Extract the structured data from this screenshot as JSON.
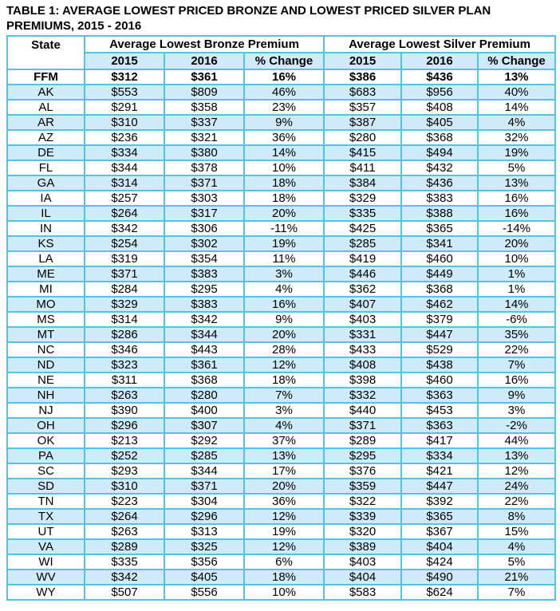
{
  "title": "TABLE 1: AVERAGE LOWEST PRICED BRONZE AND LOWEST PRICED SILVER PLAN PREMIUMS, 2015 - 2016",
  "colors": {
    "grid_border": "#56c2e2",
    "stripe_fill": "#cfeaf8",
    "text": "#000000",
    "background": "#ffffff"
  },
  "table": {
    "state_header": "State",
    "group_headers": {
      "bronze": "Average Lowest Bronze Premium",
      "silver": "Average Lowest Silver Premium"
    },
    "sub_headers": {
      "y2015": "2015",
      "y2016": "2016",
      "change": "% Change"
    },
    "rows": [
      {
        "state": "FFM",
        "bronze": [
          "$312",
          "$361",
          "16%"
        ],
        "silver": [
          "$386",
          "$436",
          "13%"
        ]
      },
      {
        "state": "AK",
        "bronze": [
          "$553",
          "$809",
          "46%"
        ],
        "silver": [
          "$683",
          "$956",
          "40%"
        ]
      },
      {
        "state": "AL",
        "bronze": [
          "$291",
          "$358",
          "23%"
        ],
        "silver": [
          "$357",
          "$408",
          "14%"
        ]
      },
      {
        "state": "AR",
        "bronze": [
          "$310",
          "$337",
          "9%"
        ],
        "silver": [
          "$387",
          "$405",
          "4%"
        ]
      },
      {
        "state": "AZ",
        "bronze": [
          "$236",
          "$321",
          "36%"
        ],
        "silver": [
          "$280",
          "$368",
          "32%"
        ]
      },
      {
        "state": "DE",
        "bronze": [
          "$334",
          "$380",
          "14%"
        ],
        "silver": [
          "$415",
          "$494",
          "19%"
        ]
      },
      {
        "state": "FL",
        "bronze": [
          "$344",
          "$378",
          "10%"
        ],
        "silver": [
          "$411",
          "$432",
          "5%"
        ]
      },
      {
        "state": "GA",
        "bronze": [
          "$314",
          "$371",
          "18%"
        ],
        "silver": [
          "$384",
          "$436",
          "13%"
        ]
      },
      {
        "state": "IA",
        "bronze": [
          "$257",
          "$303",
          "18%"
        ],
        "silver": [
          "$329",
          "$383",
          "16%"
        ]
      },
      {
        "state": "IL",
        "bronze": [
          "$264",
          "$317",
          "20%"
        ],
        "silver": [
          "$335",
          "$388",
          "16%"
        ]
      },
      {
        "state": "IN",
        "bronze": [
          "$342",
          "$306",
          "-11%"
        ],
        "silver": [
          "$425",
          "$365",
          "-14%"
        ]
      },
      {
        "state": "KS",
        "bronze": [
          "$254",
          "$302",
          "19%"
        ],
        "silver": [
          "$285",
          "$341",
          "20%"
        ]
      },
      {
        "state": "LA",
        "bronze": [
          "$319",
          "$354",
          "11%"
        ],
        "silver": [
          "$419",
          "$460",
          "10%"
        ]
      },
      {
        "state": "ME",
        "bronze": [
          "$371",
          "$383",
          "3%"
        ],
        "silver": [
          "$446",
          "$449",
          "1%"
        ]
      },
      {
        "state": "MI",
        "bronze": [
          "$284",
          "$295",
          "4%"
        ],
        "silver": [
          "$362",
          "$368",
          "1%"
        ]
      },
      {
        "state": "MO",
        "bronze": [
          "$329",
          "$383",
          "16%"
        ],
        "silver": [
          "$407",
          "$462",
          "14%"
        ]
      },
      {
        "state": "MS",
        "bronze": [
          "$314",
          "$342",
          "9%"
        ],
        "silver": [
          "$403",
          "$379",
          "-6%"
        ]
      },
      {
        "state": "MT",
        "bronze": [
          "$286",
          "$344",
          "20%"
        ],
        "silver": [
          "$331",
          "$447",
          "35%"
        ]
      },
      {
        "state": "NC",
        "bronze": [
          "$346",
          "$443",
          "28%"
        ],
        "silver": [
          "$433",
          "$529",
          "22%"
        ]
      },
      {
        "state": "ND",
        "bronze": [
          "$323",
          "$361",
          "12%"
        ],
        "silver": [
          "$408",
          "$438",
          "7%"
        ]
      },
      {
        "state": "NE",
        "bronze": [
          "$311",
          "$368",
          "18%"
        ],
        "silver": [
          "$398",
          "$460",
          "16%"
        ]
      },
      {
        "state": "NH",
        "bronze": [
          "$263",
          "$280",
          "7%"
        ],
        "silver": [
          "$332",
          "$363",
          "9%"
        ]
      },
      {
        "state": "NJ",
        "bronze": [
          "$390",
          "$400",
          "3%"
        ],
        "silver": [
          "$440",
          "$453",
          "3%"
        ]
      },
      {
        "state": "OH",
        "bronze": [
          "$296",
          "$307",
          "4%"
        ],
        "silver": [
          "$371",
          "$363",
          "-2%"
        ]
      },
      {
        "state": "OK",
        "bronze": [
          "$213",
          "$292",
          "37%"
        ],
        "silver": [
          "$289",
          "$417",
          "44%"
        ]
      },
      {
        "state": "PA",
        "bronze": [
          "$252",
          "$285",
          "13%"
        ],
        "silver": [
          "$295",
          "$334",
          "13%"
        ]
      },
      {
        "state": "SC",
        "bronze": [
          "$293",
          "$344",
          "17%"
        ],
        "silver": [
          "$376",
          "$421",
          "12%"
        ]
      },
      {
        "state": "SD",
        "bronze": [
          "$310",
          "$371",
          "20%"
        ],
        "silver": [
          "$359",
          "$447",
          "24%"
        ]
      },
      {
        "state": "TN",
        "bronze": [
          "$223",
          "$304",
          "36%"
        ],
        "silver": [
          "$322",
          "$392",
          "22%"
        ]
      },
      {
        "state": "TX",
        "bronze": [
          "$264",
          "$296",
          "12%"
        ],
        "silver": [
          "$339",
          "$365",
          "8%"
        ]
      },
      {
        "state": "UT",
        "bronze": [
          "$263",
          "$313",
          "19%"
        ],
        "silver": [
          "$320",
          "$367",
          "15%"
        ]
      },
      {
        "state": "VA",
        "bronze": [
          "$289",
          "$325",
          "12%"
        ],
        "silver": [
          "$389",
          "$404",
          "4%"
        ]
      },
      {
        "state": "WI",
        "bronze": [
          "$335",
          "$356",
          "6%"
        ],
        "silver": [
          "$403",
          "$424",
          "5%"
        ]
      },
      {
        "state": "WV",
        "bronze": [
          "$342",
          "$405",
          "18%"
        ],
        "silver": [
          "$404",
          "$490",
          "21%"
        ]
      },
      {
        "state": "WY",
        "bronze": [
          "$507",
          "$556",
          "10%"
        ],
        "silver": [
          "$583",
          "$624",
          "7%"
        ]
      }
    ]
  }
}
